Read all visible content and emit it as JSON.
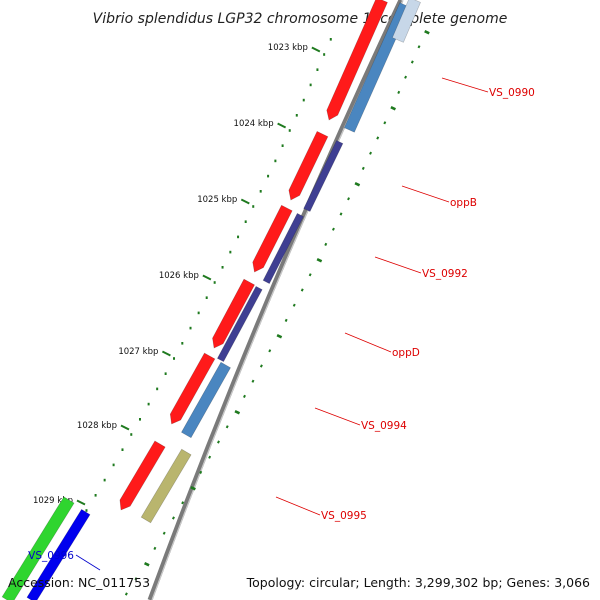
{
  "title": "Vibrio splendidus LGP32 chromosome 1, complete genome",
  "accession_text": "Accession: NC_011753",
  "summary_text": "Topology: circular; Length: 3,299,302 bp; Genes: 3,066",
  "colors": {
    "backbone": "#7a7a7a",
    "tick": "#1f7a1f",
    "cds_forward": "#ff1a1a",
    "label_red": "#dd0000",
    "label_blue": "#0000cc"
  },
  "ticks": [
    {
      "label": "1023 kbp"
    },
    {
      "label": "1024 kbp"
    },
    {
      "label": "1025 kbp"
    },
    {
      "label": "1026 kbp"
    },
    {
      "label": "1027 kbp"
    },
    {
      "label": "1028 kbp"
    },
    {
      "label": "1029 kbp"
    }
  ],
  "genes": [
    {
      "name": "VS_0990",
      "label_color": "#dd0000"
    },
    {
      "name": "oppB",
      "label_color": "#dd0000"
    },
    {
      "name": "VS_0992",
      "label_color": "#dd0000"
    },
    {
      "name": "oppD",
      "label_color": "#dd0000"
    },
    {
      "name": "VS_0994",
      "label_color": "#dd0000"
    },
    {
      "name": "VS_0995",
      "label_color": "#dd0000"
    },
    {
      "name": "VS_0996",
      "label_color": "#0000cc"
    }
  ]
}
